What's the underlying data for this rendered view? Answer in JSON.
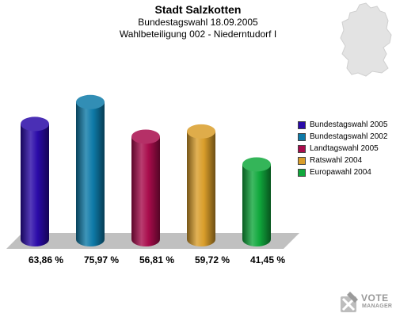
{
  "header": {
    "title": "Stadt Salzkotten",
    "line1": "Bundestagswahl 18.09.2005",
    "line2": "Wahlbeteiligung 002 - Niederntudorf I"
  },
  "map_icon": "germany-map-icon",
  "watermark": {
    "brand_top": "VOTE",
    "brand_bottom": "MANAGER",
    "icon": "ballot-cross-icon"
  },
  "chart_data": {
    "type": "bar",
    "title": "Stadt Salzkotten",
    "categories": [
      "Bundestagswahl 2005",
      "Bundestagswahl 2002",
      "Landtagswahl 2005",
      "Ratswahl 2004",
      "Europawahl 2004"
    ],
    "values": [
      63.86,
      75.97,
      56.81,
      59.72,
      41.45
    ],
    "labels": [
      "63,86 %",
      "75,97 %",
      "56,81 %",
      "59,72 %",
      "41,45 %"
    ],
    "colors": [
      "#2a0aa8",
      "#0e7aa8",
      "#a80c4c",
      "#d99d2a",
      "#10a83c"
    ],
    "ylim": [
      0,
      100
    ],
    "legend_position": "right",
    "grid": false
  }
}
